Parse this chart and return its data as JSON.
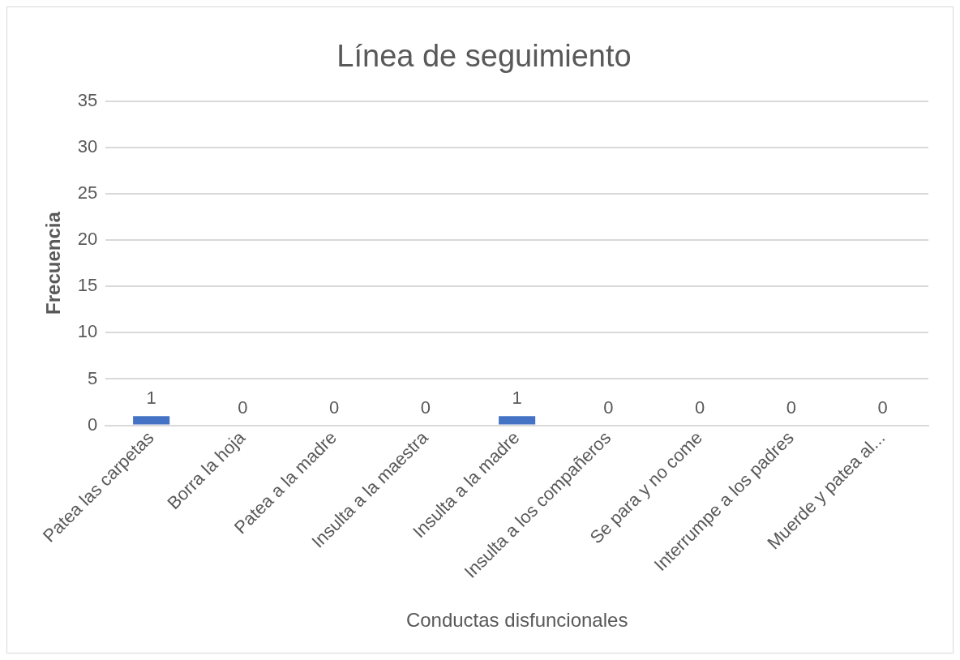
{
  "chart_data": {
    "type": "bar",
    "title": "Línea de seguimiento",
    "xlabel": "Conductas disfuncionales",
    "ylabel": "Frecuencia",
    "categories": [
      "Patea las carpetas",
      "Borra la hoja",
      "Patea a la madre",
      "Insulta a la maestra",
      "Insulta a la madre",
      "Insulta a los compañeros",
      "Se para y no come",
      "Interrumpe a los padres",
      "Muerde y patea al..."
    ],
    "values": [
      1,
      0,
      0,
      0,
      1,
      0,
      0,
      0,
      0
    ],
    "color": "#4472c4",
    "ylim": [
      0,
      35
    ],
    "yticks": [
      0,
      5,
      10,
      15,
      20,
      25,
      30,
      35
    ],
    "grid": "y",
    "data_labels": true,
    "legend": false
  }
}
